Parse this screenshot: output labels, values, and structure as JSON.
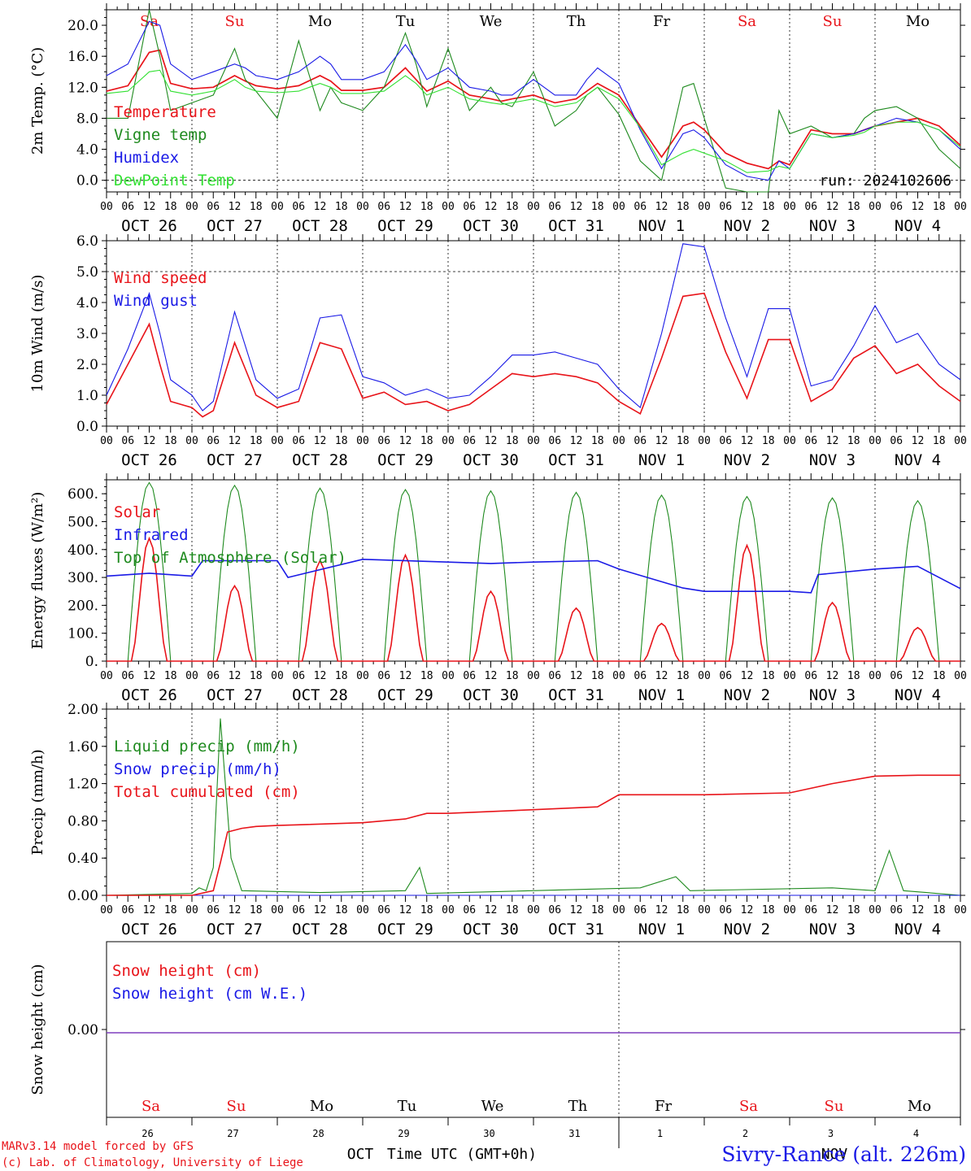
{
  "colors": {
    "red": "#e8141a",
    "green": "#1e8a1e",
    "blue": "#1a1ae6",
    "lightgreen": "#33e033",
    "purple": "#7f3fbf",
    "black": "#000000"
  },
  "time_axis": {
    "hour_labels": [
      "00",
      "06",
      "12",
      "18"
    ],
    "date_labels": [
      "OCT 26",
      "OCT 27",
      "OCT 28",
      "OCT 29",
      "OCT 30",
      "OCT 31",
      "NOV  1",
      "NOV  2",
      "NOV  3",
      "NOV  4"
    ],
    "day_labels": [
      "Sa",
      "Su",
      "Mo",
      "Tu",
      "We",
      "Th",
      "Fr",
      "Sa",
      "Su",
      "Mo"
    ],
    "day_colors": [
      "#e8141a",
      "#e8141a",
      "#000000",
      "#000000",
      "#000000",
      "#000000",
      "#000000",
      "#e8141a",
      "#e8141a",
      "#000000"
    ],
    "day_numbers": [
      "26",
      "27",
      "28",
      "29",
      "30",
      "31",
      "1",
      "2",
      "3",
      "4"
    ],
    "month_labels": [
      "OCT",
      "NOV"
    ]
  },
  "footer": {
    "model": "MARv3.14 model forced by GFS",
    "lab": "(c) Lab. of Climatology, University of Liege",
    "xlabel": "Time UTC (GMT+0h)",
    "station": "Sivry-Rance (alt. 226m)"
  },
  "chart_data": [
    {
      "type": "line",
      "ylabel": "2m Temp. (°C)",
      "ylim": [
        -1.5,
        22
      ],
      "yticks": [
        "0.0",
        "4.0",
        "8.0",
        "12.0",
        "16.0",
        "20.0"
      ],
      "ytick_values": [
        0,
        4,
        8,
        12,
        16,
        20
      ],
      "dashed_y": [
        0
      ],
      "annotation": "run: 2024102606",
      "x_hours": [
        0,
        6,
        12,
        15,
        18,
        24,
        30,
        36,
        39,
        42,
        48,
        54,
        60,
        63,
        66,
        72,
        78,
        84,
        87,
        90,
        96,
        102,
        108,
        111,
        114,
        120,
        126,
        132,
        135,
        138,
        144,
        150,
        156,
        162,
        165,
        168,
        174,
        180,
        186,
        189,
        192,
        198,
        204,
        210,
        213,
        216,
        222,
        228,
        234,
        240
      ],
      "series": [
        {
          "name": "Temperature",
          "color": "#e8141a",
          "values": [
            11.5,
            12.2,
            16.5,
            16.8,
            12.5,
            11.8,
            12.0,
            13.5,
            12.8,
            12.2,
            11.8,
            12.2,
            13.5,
            12.8,
            11.6,
            11.6,
            12.0,
            14.5,
            13.0,
            11.5,
            12.8,
            11.0,
            10.5,
            10.2,
            10.5,
            11.0,
            10.0,
            10.5,
            11.5,
            12.5,
            11.0,
            7.0,
            3.0,
            7.0,
            7.5,
            6.5,
            3.5,
            2.2,
            1.5,
            2.5,
            2.0,
            6.5,
            6.0,
            6.0,
            6.5,
            7.0,
            7.5,
            8.0,
            7.0,
            4.5
          ]
        },
        {
          "name": "Vigne temp",
          "color": "#1e8a1e",
          "values": [
            8.0,
            8.0,
            23.0,
            16.0,
            9.0,
            10.0,
            11.0,
            17.0,
            13.0,
            11.5,
            8.0,
            18.0,
            9.0,
            12.0,
            10.0,
            9.0,
            12.0,
            19.0,
            15.0,
            9.5,
            17.0,
            9.0,
            12.0,
            10.0,
            9.5,
            14.0,
            7.0,
            9.0,
            11.0,
            12.0,
            8.5,
            2.5,
            0.0,
            12.0,
            12.5,
            8.0,
            -1.0,
            -2.0,
            -1.5,
            9.0,
            6.0,
            7.0,
            5.5,
            6.0,
            8.0,
            9.0,
            9.5,
            8.0,
            4.0,
            1.5
          ]
        },
        {
          "name": "Humidex",
          "color": "#1a1ae6",
          "values": [
            13.5,
            15.0,
            20.5,
            20.0,
            15.0,
            13.0,
            14.0,
            15.0,
            14.5,
            13.5,
            13.0,
            14.0,
            16.0,
            15.0,
            13.0,
            13.0,
            14.0,
            17.5,
            15.5,
            13.0,
            14.5,
            12.0,
            11.5,
            11.0,
            11.0,
            13.0,
            11.0,
            11.0,
            13.0,
            14.5,
            12.5,
            6.5,
            1.5,
            6.0,
            6.5,
            5.5,
            2.0,
            0.5,
            0.0,
            2.5,
            1.5,
            6.0,
            5.5,
            6.0,
            6.5,
            7.0,
            8.0,
            7.5,
            6.5,
            4.0
          ]
        },
        {
          "name": "DewPoint Temp",
          "color": "#33e033",
          "values": [
            11.2,
            11.5,
            14.0,
            14.2,
            11.5,
            11.0,
            11.5,
            13.0,
            12.0,
            11.5,
            11.3,
            11.5,
            12.5,
            12.0,
            11.2,
            11.2,
            11.5,
            13.5,
            12.5,
            11.0,
            12.0,
            10.5,
            10.0,
            9.8,
            10.0,
            10.5,
            9.5,
            10.0,
            11.0,
            12.0,
            10.5,
            6.8,
            2.0,
            3.5,
            4.0,
            3.5,
            2.5,
            1.0,
            1.2,
            1.8,
            1.5,
            6.0,
            5.5,
            5.8,
            6.2,
            7.0,
            7.5,
            7.5,
            6.5,
            4.3
          ]
        }
      ]
    },
    {
      "type": "line",
      "ylabel": "10m Wind (m/s)",
      "ylim": [
        0,
        6
      ],
      "yticks": [
        "0.0",
        "1.0",
        "2.0",
        "3.0",
        "4.0",
        "5.0",
        "6.0"
      ],
      "ytick_values": [
        0,
        1,
        2,
        3,
        4,
        5,
        6
      ],
      "dashed_y": [
        5
      ],
      "x_hours": [
        0,
        6,
        12,
        15,
        18,
        24,
        27,
        30,
        36,
        42,
        48,
        54,
        60,
        66,
        72,
        78,
        84,
        90,
        96,
        102,
        108,
        114,
        120,
        126,
        132,
        138,
        144,
        150,
        156,
        162,
        168,
        174,
        180,
        186,
        192,
        198,
        204,
        210,
        216,
        222,
        228,
        234,
        240
      ],
      "series": [
        {
          "name": "Wind speed",
          "color": "#e8141a",
          "values": [
            0.7,
            2.0,
            3.3,
            2.0,
            0.8,
            0.6,
            0.3,
            0.5,
            2.7,
            1.0,
            0.6,
            0.8,
            2.7,
            2.5,
            0.9,
            1.1,
            0.7,
            0.8,
            0.5,
            0.7,
            1.2,
            1.7,
            1.6,
            1.7,
            1.6,
            1.4,
            0.8,
            0.4,
            2.2,
            4.2,
            4.3,
            2.4,
            0.9,
            2.8,
            2.8,
            0.8,
            1.2,
            2.2,
            2.6,
            1.7,
            2.0,
            1.3,
            0.8
          ]
        },
        {
          "name": "Wind gust",
          "color": "#1a1ae6",
          "values": [
            1.0,
            2.5,
            4.3,
            3.0,
            1.5,
            1.0,
            0.5,
            0.8,
            3.7,
            1.5,
            0.9,
            1.2,
            3.5,
            3.6,
            1.6,
            1.4,
            1.0,
            1.2,
            0.9,
            1.0,
            1.6,
            2.3,
            2.3,
            2.4,
            2.2,
            2.0,
            1.2,
            0.6,
            3.0,
            5.9,
            5.8,
            3.5,
            1.6,
            3.8,
            3.8,
            1.3,
            1.5,
            2.6,
            3.9,
            2.7,
            3.0,
            2.0,
            1.5
          ]
        }
      ]
    },
    {
      "type": "line",
      "ylabel": "Energy fluxes (W/m²)",
      "ylim": [
        0,
        650
      ],
      "yticks": [
        "0.",
        "100.",
        "200.",
        "300.",
        "400.",
        "500.",
        "600."
      ],
      "ytick_values": [
        0,
        100,
        200,
        300,
        400,
        500,
        600
      ],
      "dashed_y": [],
      "solar_peaks": [
        440,
        270,
        360,
        380,
        250,
        190,
        135,
        415,
        210,
        120
      ],
      "toa_peaks": [
        640,
        630,
        620,
        615,
        610,
        605,
        595,
        590,
        585,
        575
      ],
      "x_hours_ir": [
        0,
        12,
        24,
        27,
        48,
        51,
        72,
        96,
        108,
        120,
        138,
        144,
        162,
        168,
        192,
        198,
        200,
        216,
        228,
        240
      ],
      "ir_values": [
        305,
        315,
        305,
        360,
        360,
        300,
        365,
        355,
        350,
        355,
        360,
        330,
        262,
        250,
        250,
        245,
        310,
        330,
        340,
        260
      ],
      "series": [
        {
          "name": "Solar",
          "color": "#e8141a"
        },
        {
          "name": "Infrared",
          "color": "#1a1ae6"
        },
        {
          "name": "Top of Atmosphere (Solar)",
          "color": "#1e8a1e"
        }
      ]
    },
    {
      "type": "line",
      "ylabel": "Precip (mm/h)",
      "ylim": [
        0,
        2
      ],
      "yticks": [
        "0.00",
        "0.40",
        "0.80",
        "1.20",
        "1.60",
        "2.00"
      ],
      "ytick_values": [
        0,
        0.4,
        0.8,
        1.2,
        1.6,
        2.0
      ],
      "dashed_y": [],
      "x_hours": [
        0,
        24,
        30,
        32,
        34,
        38,
        42,
        48,
        72,
        84,
        90,
        96,
        120,
        138,
        144,
        168,
        192,
        204,
        216,
        228,
        240
      ],
      "cumulated": [
        0,
        0,
        0.05,
        0.35,
        0.68,
        0.72,
        0.74,
        0.75,
        0.78,
        0.82,
        0.88,
        0.88,
        0.92,
        0.95,
        1.08,
        1.08,
        1.1,
        1.2,
        1.28,
        1.29,
        1.29
      ],
      "liquid": [
        [
          0,
          0
        ],
        [
          24,
          0.02
        ],
        [
          26,
          0.08
        ],
        [
          28,
          0.05
        ],
        [
          30,
          0.3
        ],
        [
          32,
          1.9
        ],
        [
          35,
          0.4
        ],
        [
          38,
          0.05
        ],
        [
          60,
          0.03
        ],
        [
          84,
          0.05
        ],
        [
          88,
          0.3
        ],
        [
          90,
          0.02
        ],
        [
          150,
          0.08
        ],
        [
          160,
          0.2
        ],
        [
          164,
          0.05
        ],
        [
          204,
          0.08
        ],
        [
          216,
          0.05
        ],
        [
          220,
          0.48
        ],
        [
          224,
          0.05
        ],
        [
          240,
          0
        ]
      ],
      "series": [
        {
          "name": "Liquid precip (mm/h)",
          "color": "#1e8a1e"
        },
        {
          "name": "Snow precip (mm/h)",
          "color": "#1a1ae6"
        },
        {
          "name": "Total cumulated (cm)",
          "color": "#e8141a"
        }
      ]
    },
    {
      "type": "line",
      "ylabel": "Snow height (cm)",
      "ylim": [
        -1,
        1
      ],
      "yticks": [
        "0.00"
      ],
      "ytick_values": [
        0
      ],
      "series": [
        {
          "name": "Snow height (cm)",
          "color": "#e8141a",
          "values": [
            0,
            0
          ]
        },
        {
          "name": "Snow height (cm W.E.)",
          "color": "#1a1ae6",
          "values": [
            0,
            0
          ]
        }
      ]
    }
  ]
}
